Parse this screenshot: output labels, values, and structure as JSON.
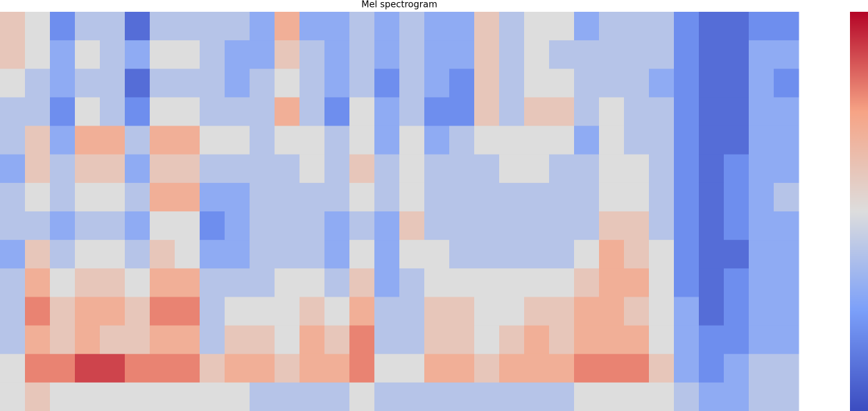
{
  "chart_data": {
    "type": "heatmap",
    "title": "Mel spectrogram",
    "colormap": "coolwarm",
    "zlim": [
      0,
      10
    ],
    "z": [
      [
        6,
        6,
        5,
        4,
        4,
        3,
        4,
        4,
        3,
        4,
        4,
        4,
        5,
        5
      ],
      [
        5,
        5,
        4,
        4,
        6,
        6,
        5,
        4,
        6,
        7,
        8,
        7,
        8,
        6
      ],
      [
        2,
        3,
        3,
        2,
        3,
        4,
        4,
        3,
        4,
        5,
        6,
        6,
        8,
        5
      ],
      [
        4,
        5,
        4,
        5,
        7,
        6,
        5,
        4,
        5,
        6,
        7,
        7,
        9,
        5
      ],
      [
        4,
        4,
        4,
        4,
        7,
        6,
        5,
        4,
        5,
        6,
        7,
        6,
        9,
        5
      ],
      [
        1,
        3,
        1,
        2,
        4,
        3,
        4,
        3,
        4,
        5,
        6,
        6,
        8,
        5
      ],
      [
        4,
        5,
        4,
        5,
        7,
        6,
        7,
        5,
        6,
        7,
        8,
        7,
        8,
        5
      ],
      [
        4,
        5,
        4,
        5,
        7,
        6,
        7,
        5,
        5,
        7,
        8,
        7,
        8,
        5
      ],
      [
        4,
        4,
        4,
        4,
        5,
        4,
        3,
        2,
        3,
        4,
        4,
        4,
        6,
        5
      ],
      [
        4,
        3,
        3,
        4,
        5,
        4,
        3,
        3,
        3,
        4,
        5,
        6,
        7,
        5
      ],
      [
        3,
        3,
        4,
        4,
        4,
        4,
        4,
        4,
        4,
        4,
        5,
        6,
        7,
        4
      ],
      [
        7,
        6,
        5,
        7,
        5,
        4,
        4,
        4,
        4,
        5,
        5,
        5,
        6,
        4
      ],
      [
        3,
        4,
        4,
        4,
        5,
        5,
        4,
        4,
        4,
        5,
        6,
        7,
        7,
        4
      ],
      [
        3,
        3,
        3,
        2,
        4,
        4,
        4,
        3,
        3,
        4,
        5,
        6,
        7,
        4
      ],
      [
        4,
        4,
        4,
        5,
        5,
        6,
        5,
        4,
        5,
        6,
        7,
        8,
        8,
        5
      ],
      [
        3,
        3,
        2,
        3,
        3,
        4,
        4,
        3,
        3,
        3,
        4,
        4,
        5,
        4
      ],
      [
        4,
        4,
        4,
        4,
        5,
        5,
        5,
        6,
        5,
        4,
        4,
        4,
        5,
        4
      ],
      [
        3,
        3,
        3,
        2,
        3,
        4,
        4,
        4,
        5,
        5,
        6,
        6,
        7,
        4
      ],
      [
        3,
        3,
        2,
        2,
        4,
        4,
        4,
        4,
        4,
        5,
        6,
        6,
        7,
        4
      ],
      [
        6,
        6,
        6,
        6,
        5,
        4,
        4,
        4,
        4,
        5,
        5,
        5,
        6,
        4
      ],
      [
        4,
        4,
        4,
        4,
        5,
        5,
        4,
        4,
        4,
        5,
        5,
        6,
        7,
        4
      ],
      [
        5,
        5,
        5,
        6,
        5,
        5,
        4,
        4,
        4,
        5,
        6,
        7,
        7,
        4
      ],
      [
        5,
        4,
        5,
        6,
        5,
        4,
        4,
        4,
        4,
        5,
        6,
        6,
        7,
        4
      ],
      [
        3,
        4,
        4,
        4,
        3,
        4,
        4,
        4,
        5,
        6,
        7,
        7,
        8,
        5
      ],
      [
        4,
        4,
        4,
        5,
        5,
        5,
        5,
        6,
        7,
        7,
        7,
        7,
        8,
        5
      ],
      [
        4,
        4,
        4,
        4,
        4,
        5,
        5,
        6,
        6,
        7,
        6,
        7,
        8,
        5
      ],
      [
        4,
        4,
        3,
        4,
        4,
        4,
        4,
        4,
        5,
        5,
        5,
        5,
        6,
        5
      ],
      [
        2,
        2,
        2,
        2,
        2,
        2,
        2,
        2,
        2,
        2,
        3,
        3,
        3,
        4
      ],
      [
        1,
        1,
        1,
        1,
        1,
        1,
        1,
        1,
        1,
        1,
        1,
        2,
        2,
        3
      ],
      [
        1,
        1,
        1,
        1,
        1,
        2,
        2,
        2,
        1,
        2,
        2,
        2,
        3,
        3
      ],
      [
        2,
        3,
        3,
        3,
        3,
        3,
        3,
        3,
        3,
        3,
        3,
        3,
        4,
        4
      ],
      [
        2,
        3,
        2,
        3,
        3,
        3,
        4,
        3,
        3,
        3,
        3,
        3,
        4,
        4
      ]
    ]
  }
}
